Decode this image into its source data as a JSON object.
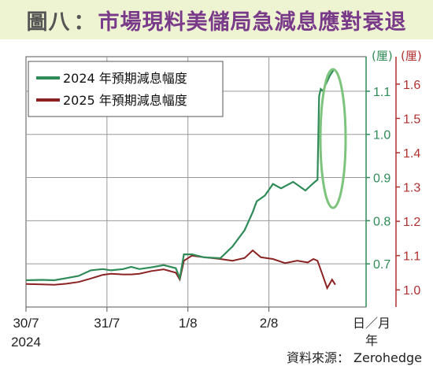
{
  "title": {
    "prefix": "圖八",
    "separator": "：",
    "text": "市場現料美儲局急減息應對衰退"
  },
  "source": "資料來源： Zerohedge",
  "colors": {
    "series_2024": "#2e8b57",
    "series_2025": "#8b2323",
    "axis_left": "#2e8b57",
    "axis_right": "#b03030",
    "highlight_ellipse": "#7cc47c",
    "title_bg": "#eef3d2",
    "title_main": "#7a3a8a",
    "title_prefix": "#555555"
  },
  "chart_data": {
    "type": "line",
    "x_ticks": [
      "30/7",
      "31/7",
      "1/8",
      "2/8"
    ],
    "x_year": "2024",
    "x_unit": "日／月",
    "x_unit_line2": "年",
    "y_left": {
      "unit": "(厘)",
      "ticks": [
        "0.7",
        "0.8",
        "0.9",
        "1.0",
        "1.1"
      ],
      "range": [
        0.6,
        1.18
      ]
    },
    "y_right": {
      "unit": "(厘)",
      "ticks": [
        "1.0",
        "1.1",
        "1.2",
        "1.3",
        "1.4",
        "1.5",
        "1.6"
      ],
      "range": [
        0.95,
        1.68
      ]
    },
    "grid": true,
    "legend": "top-left",
    "series": [
      {
        "name": "2024 年預期減息幅度",
        "axis": "left",
        "x": [
          0,
          0.2,
          0.35,
          0.5,
          0.65,
          0.8,
          0.95,
          1.05,
          1.2,
          1.3,
          1.4,
          1.55,
          1.7,
          1.85,
          1.9,
          1.95,
          2.05,
          2.2,
          2.4,
          2.55,
          2.7,
          2.8,
          2.85,
          2.95,
          3.05,
          3.15,
          3.3,
          3.45,
          3.55,
          3.6,
          3.62,
          3.64,
          3.67,
          3.7,
          3.75,
          3.8
        ],
        "values": [
          0.662,
          0.663,
          0.662,
          0.667,
          0.672,
          0.685,
          0.688,
          0.685,
          0.688,
          0.693,
          0.688,
          0.692,
          0.697,
          0.69,
          0.667,
          0.722,
          0.722,
          0.715,
          0.713,
          0.74,
          0.778,
          0.82,
          0.845,
          0.858,
          0.885,
          0.875,
          0.89,
          0.87,
          0.887,
          0.895,
          1.088,
          1.105,
          1.1,
          1.115,
          1.135,
          1.15
        ]
      },
      {
        "name": "2025 年預期減息幅度",
        "axis": "right",
        "x": [
          0,
          0.2,
          0.35,
          0.5,
          0.65,
          0.8,
          0.95,
          1.05,
          1.2,
          1.3,
          1.4,
          1.55,
          1.7,
          1.85,
          1.9,
          1.95,
          2.05,
          2.2,
          2.4,
          2.55,
          2.7,
          2.8,
          2.9,
          3.05,
          3.2,
          3.35,
          3.48,
          3.55,
          3.6,
          3.66,
          3.72,
          3.78,
          3.82
        ],
        "values": [
          1.017,
          1.016,
          1.015,
          1.018,
          1.023,
          1.033,
          1.044,
          1.047,
          1.045,
          1.045,
          1.047,
          1.055,
          1.06,
          1.05,
          1.03,
          1.085,
          1.1,
          1.095,
          1.09,
          1.085,
          1.093,
          1.115,
          1.095,
          1.09,
          1.078,
          1.085,
          1.08,
          1.09,
          1.085,
          1.045,
          1.005,
          1.03,
          1.015
        ]
      }
    ],
    "annotations": [
      {
        "type": "ellipse",
        "around": "latest jump in 2024 series"
      }
    ]
  }
}
